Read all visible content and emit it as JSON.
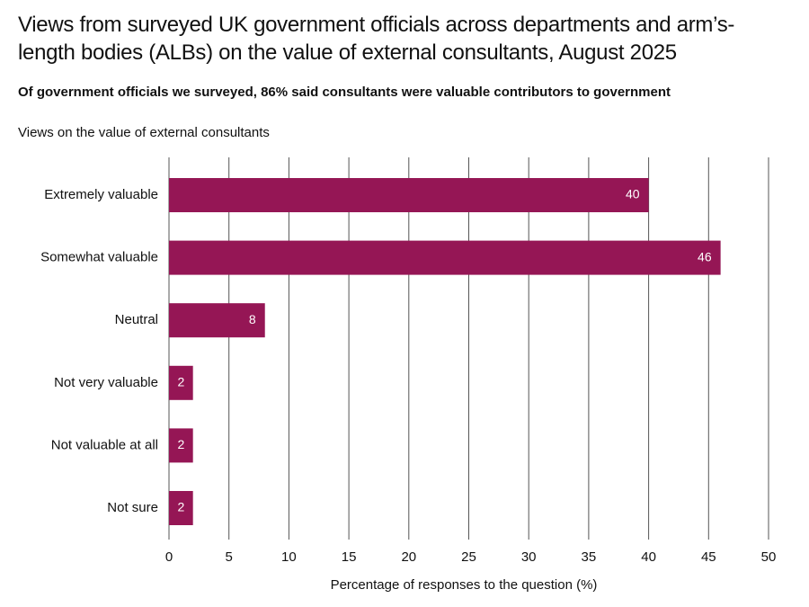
{
  "chart_data": {
    "type": "bar",
    "orientation": "horizontal",
    "title": "Views from surveyed UK government officials across departments and arm’s-length bodies (ALBs) on the value of external consultants, August 2025",
    "subtitle": "Of government officials we surveyed, 86% said consultants were valuable contributors to government",
    "y_label": "Views on the value of external consultants",
    "x_label": "Percentage of responses to the question (%)",
    "categories": [
      "Extremely valuable",
      "Somewhat valuable",
      "Neutral",
      "Not very valuable",
      "Not valuable at all",
      "Not sure"
    ],
    "values": [
      40,
      46,
      8,
      2,
      2,
      2
    ],
    "color": "#951655",
    "xlim": [
      0,
      50
    ],
    "xticks": [
      0,
      5,
      10,
      15,
      20,
      25,
      30,
      35,
      40,
      45,
      50
    ],
    "grid": true
  }
}
